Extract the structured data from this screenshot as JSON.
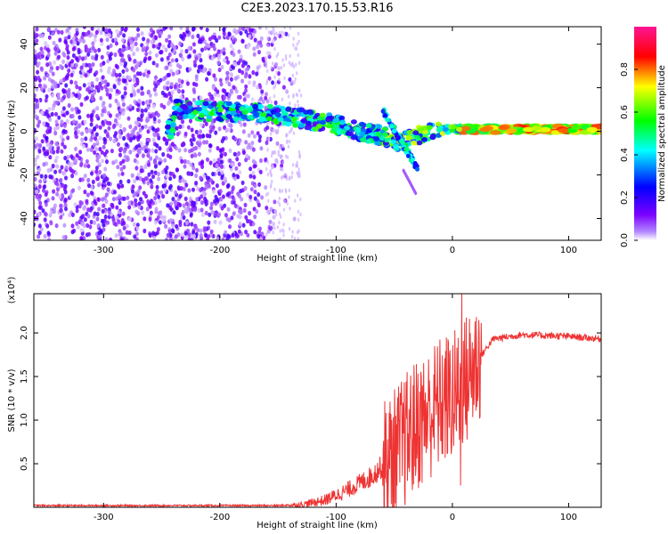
{
  "title": "C2E3.2023.170.15.53.R16",
  "chart_data": [
    {
      "type": "heatmap",
      "xlabel": "Height of straight line (km)",
      "ylabel": "Frequency (Hz)",
      "xlim": [
        -360,
        128
      ],
      "ylim": [
        -50,
        48
      ],
      "xticks": [
        -300,
        -200,
        -100,
        0,
        100
      ],
      "yticks": [
        -40,
        -20,
        0,
        20,
        40
      ],
      "colorbar": {
        "label": "Normalized spectral amplitude",
        "range": [
          0.0,
          1.0
        ],
        "ticks": [
          "0.0",
          "0.2",
          "0.4",
          "0.6",
          "0.8"
        ],
        "colors": [
          "#ffffff",
          "#7a00ff",
          "#0000ff",
          "#00ffff",
          "#00ff00",
          "#ffff00",
          "#ff0000",
          "#ff1493"
        ]
      },
      "ridge": [
        {
          "x": -240,
          "y": 10
        },
        {
          "x": -200,
          "y": 9
        },
        {
          "x": -160,
          "y": 8
        },
        {
          "x": -130,
          "y": 6
        },
        {
          "x": -100,
          "y": 3
        },
        {
          "x": -80,
          "y": 0
        },
        {
          "x": -60,
          "y": -2
        },
        {
          "x": -45,
          "y": -5
        },
        {
          "x": -20,
          "y": 0
        },
        {
          "x": 0,
          "y": 1
        },
        {
          "x": 50,
          "y": 1
        },
        {
          "x": 128,
          "y": 1
        }
      ],
      "noise_region_x": [
        -360,
        -150
      ]
    },
    {
      "type": "line",
      "xlabel": "Height of straight line (km)",
      "ylabel": "SNR (10 * v/v)",
      "y_multiplier": "(x10⁴)",
      "xlim": [
        -360,
        128
      ],
      "ylim": [
        0,
        2.45
      ],
      "xticks": [
        -300,
        -200,
        -100,
        0,
        100
      ],
      "yticks": [
        "0.5",
        "1.0",
        "1.5",
        "2.0"
      ],
      "color": "#ee3333",
      "profile": [
        {
          "x": -360,
          "y": 0.02
        },
        {
          "x": -150,
          "y": 0.02
        },
        {
          "x": -130,
          "y": 0.03
        },
        {
          "x": -110,
          "y": 0.08
        },
        {
          "x": -90,
          "y": 0.2
        },
        {
          "x": -70,
          "y": 0.35
        },
        {
          "x": -50,
          "y": 0.6
        },
        {
          "x": -30,
          "y": 0.95
        },
        {
          "x": -10,
          "y": 1.2
        },
        {
          "x": 5,
          "y": 1.3
        },
        {
          "x": 20,
          "y": 1.65
        },
        {
          "x": 35,
          "y": 1.93
        },
        {
          "x": 60,
          "y": 1.98
        },
        {
          "x": 100,
          "y": 1.96
        },
        {
          "x": 128,
          "y": 1.93
        }
      ],
      "peak": {
        "x": 8,
        "y": 2.45
      }
    }
  ]
}
